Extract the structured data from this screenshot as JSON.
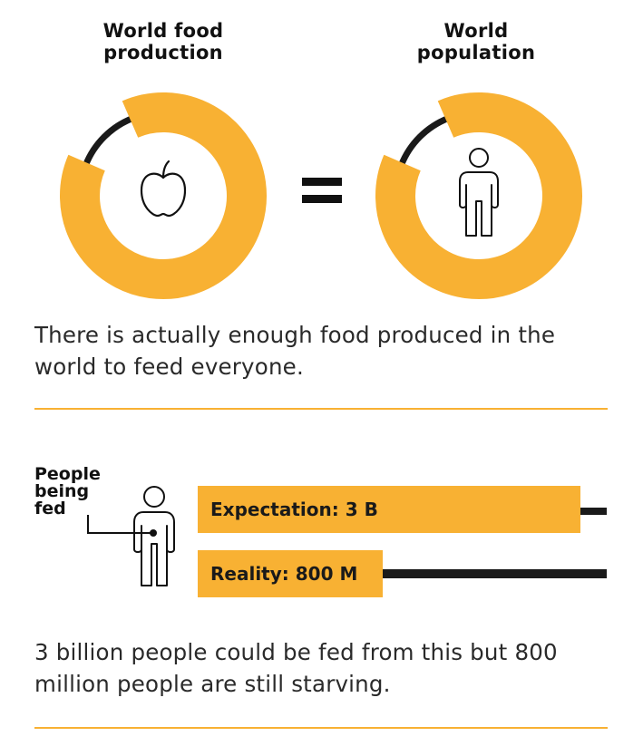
{
  "colors": {
    "accent": "#f8b133",
    "dark": "#1a1a1a",
    "text": "#2a2a2a"
  },
  "rings": [
    {
      "heading": "World food production",
      "icon": "apple-icon",
      "filled_fraction": 0.88
    },
    {
      "heading": "World population",
      "icon": "person-icon",
      "filled_fraction": 0.88
    }
  ],
  "equals_icon": "equals-icon",
  "statement_1": "There is actually enough food produced in the world to feed everyone.",
  "fed_section": {
    "legend_label": "People being fed",
    "icon": "person-icon",
    "bars": [
      {
        "label": "Expectation: 3 B",
        "value_people": 3000000000
      },
      {
        "label": "Reality: 800 M",
        "value_people": 800000000
      }
    ]
  },
  "statement_2": "3 billion people could be fed from this but 800 million people are still starving."
}
